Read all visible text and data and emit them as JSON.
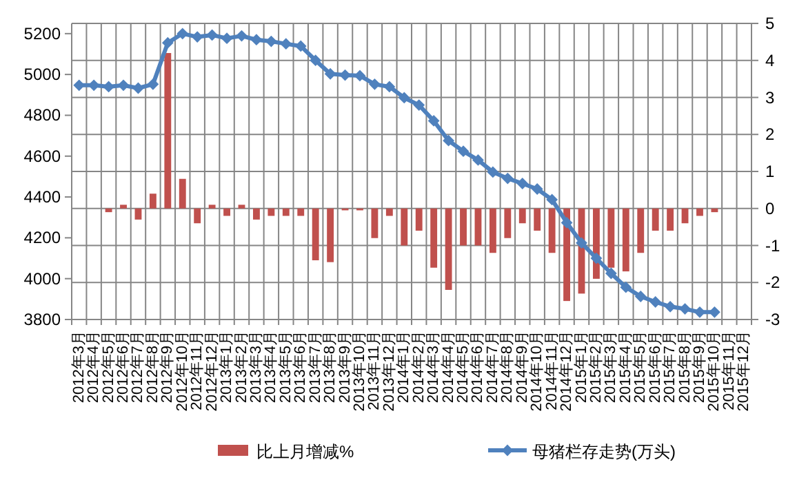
{
  "chart_data": {
    "type": "bar",
    "categories": [
      "2012年3月",
      "2012年4月",
      "2012年5月",
      "2012年6月",
      "2012年7月",
      "2012年8月",
      "2012年9月",
      "2012年10月",
      "2012年11月",
      "2012年12月",
      "2013年1月",
      "2013年2月",
      "2013年3月",
      "2013年4月",
      "2013年5月",
      "2013年6月",
      "2013年7月",
      "2013年8月",
      "2013年9月",
      "2013年10月",
      "2013年11月",
      "2013年12月",
      "2014年1月",
      "2014年2月",
      "2014年3月",
      "2014年4月",
      "2014年5月",
      "2014年6月",
      "2014年7月",
      "2014年8月",
      "2014年9月",
      "2014年10月",
      "2014年11月",
      "2014年12月",
      "2015年1月",
      "2015年2月",
      "2015年3月",
      "2015年4月",
      "2015年5月",
      "2015年6月",
      "2015年7月",
      "2015年8月",
      "2015年9月",
      "2015年10月",
      "2015年11月",
      "2015年12月"
    ],
    "series": [
      {
        "name": "比上月增减%",
        "axis": "y2",
        "color": "#c0504d",
        "values": [
          null,
          null,
          -0.1,
          0.1,
          -0.3,
          0.4,
          4.2,
          0.8,
          -0.4,
          0.1,
          -0.2,
          0.1,
          -0.3,
          -0.2,
          -0.2,
          -0.2,
          -1.4,
          -1.45,
          -0.05,
          -0.05,
          -0.8,
          -0.2,
          -1.0,
          -0.6,
          -1.6,
          -2.2,
          -1.0,
          -1.0,
          -1.2,
          -0.8,
          -0.4,
          -0.6,
          -1.2,
          -2.5,
          -2.3,
          -1.9,
          -1.6,
          -1.7,
          -1.2,
          -0.6,
          -0.6,
          -0.4,
          -0.2,
          -0.1,
          null,
          null
        ]
      },
      {
        "name": "母猪栏存走势(万头)",
        "type": "line",
        "color": "#4f81bd",
        "marker": "diamond",
        "values": [
          4947,
          4947,
          4940,
          4947,
          4933,
          4952,
          5155,
          5200,
          5184,
          5193,
          5177,
          5189,
          5170,
          5162,
          5150,
          5139,
          5069,
          5003,
          4997,
          4994,
          4952,
          4940,
          4886,
          4850,
          4773,
          4676,
          4624,
          4581,
          4522,
          4491,
          4466,
          4439,
          4387,
          4274,
          4175,
          4100,
          4026,
          3958,
          3913,
          3886,
          3863,
          3852,
          3836,
          3836,
          null,
          null
        ]
      }
    ],
    "ylim": [
      3800,
      5250
    ],
    "yticks": [
      3800,
      4000,
      4200,
      4400,
      4600,
      4800,
      5000,
      5200
    ],
    "y2lim": [
      -3,
      5
    ],
    "y2ticks": [
      -3,
      -2,
      -1,
      0,
      1,
      2,
      3,
      4,
      5
    ],
    "grid": true,
    "legend": "bottom"
  }
}
